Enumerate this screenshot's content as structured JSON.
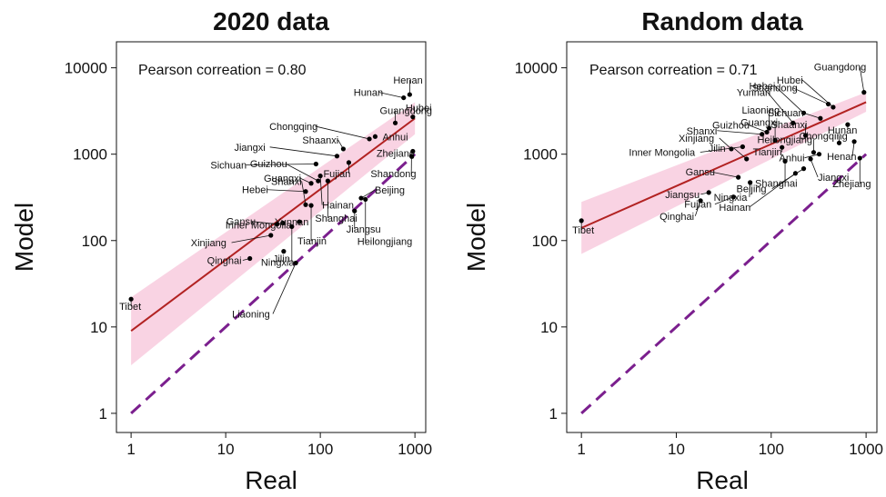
{
  "chart_data": [
    {
      "type": "scatter",
      "title": "2020 data",
      "xlabel": "Real",
      "ylabel": "Model",
      "xscale": "log",
      "yscale": "log",
      "xlim": [
        0.7,
        1300
      ],
      "ylim": [
        0.6,
        20000
      ],
      "xticks": [
        1,
        10,
        100,
        1000
      ],
      "xtick_labels": [
        "1",
        "10",
        "100",
        "1000"
      ],
      "yticks": [
        1,
        10,
        100,
        1000,
        10000
      ],
      "ytick_labels": [
        "1",
        "10",
        "100",
        "1000",
        "10000"
      ],
      "annotation": "Pearson correation = 0.80",
      "grid": false,
      "colors": {
        "points": "#000000",
        "fit": "#b22222",
        "band": "#f8c8dc",
        "identity": "#7b1f8e"
      },
      "fit_line": {
        "x": [
          1,
          1000
        ],
        "y": [
          9,
          2600
        ]
      },
      "confidence_band": {
        "x": [
          1,
          1000
        ],
        "lower": [
          3.6,
          1700
        ],
        "upper": [
          22,
          4000
        ]
      },
      "identity_line": {
        "x": [
          1,
          1000
        ],
        "y": [
          1,
          1000
        ]
      },
      "points": [
        {
          "label": "Tibet",
          "x": 1,
          "y": 21
        },
        {
          "label": "Qinghai",
          "x": 18,
          "y": 62
        },
        {
          "label": "Xinjiang",
          "x": 30,
          "y": 115
        },
        {
          "label": "Inner Mongolia",
          "x": 40,
          "y": 160
        },
        {
          "label": "Jilin",
          "x": 41,
          "y": 75
        },
        {
          "label": "Ningxia",
          "x": 50,
          "y": 145
        },
        {
          "label": "Liaoning",
          "x": 55,
          "y": 55
        },
        {
          "label": "Yunnan",
          "x": 60,
          "y": 165
        },
        {
          "label": "Gansu",
          "x": 35,
          "y": 155
        },
        {
          "label": "Shanxi",
          "x": 70,
          "y": 260
        },
        {
          "label": "Tianjin",
          "x": 80,
          "y": 255
        },
        {
          "label": "Hebei",
          "x": 70,
          "y": 370
        },
        {
          "label": "Guangxi",
          "x": 80,
          "y": 460
        },
        {
          "label": "Guizhou",
          "x": 95,
          "y": 490
        },
        {
          "label": "Sichuan",
          "x": 90,
          "y": 770
        },
        {
          "label": "Hainan",
          "x": 100,
          "y": 560
        },
        {
          "label": "Shanghai",
          "x": 120,
          "y": 490
        },
        {
          "label": "Jiangxi",
          "x": 150,
          "y": 950
        },
        {
          "label": "Shaanxi",
          "x": 175,
          "y": 1150
        },
        {
          "label": "Chongqing",
          "x": 330,
          "y": 1500
        },
        {
          "label": "Fujian",
          "x": 200,
          "y": 800
        },
        {
          "label": "Jiangsu",
          "x": 230,
          "y": 220
        },
        {
          "label": "Heilongjiang",
          "x": 300,
          "y": 300
        },
        {
          "label": "Beijing",
          "x": 270,
          "y": 310
        },
        {
          "label": "Anhui",
          "x": 380,
          "y": 1600
        },
        {
          "label": "Zhejiang",
          "x": 950,
          "y": 1080
        },
        {
          "label": "Shandong",
          "x": 920,
          "y": 950
        },
        {
          "label": "Guangdong",
          "x": 620,
          "y": 2300
        },
        {
          "label": "Hubei",
          "x": 950,
          "y": 2700
        },
        {
          "label": "Hunan",
          "x": 760,
          "y": 4500
        },
        {
          "label": "Henan",
          "x": 880,
          "y": 4900
        }
      ]
    },
    {
      "type": "scatter",
      "title": "Random data",
      "xlabel": "Real",
      "ylabel": "Model",
      "xscale": "log",
      "yscale": "log",
      "xlim": [
        0.7,
        1300
      ],
      "ylim": [
        0.6,
        20000
      ],
      "xticks": [
        1,
        10,
        100,
        1000
      ],
      "xtick_labels": [
        "1",
        "10",
        "100",
        "1000"
      ],
      "yticks": [
        1,
        10,
        100,
        1000,
        10000
      ],
      "ytick_labels": [
        "1",
        "10",
        "100",
        "1000",
        "10000"
      ],
      "annotation": "Pearson correation = 0.71",
      "grid": false,
      "colors": {
        "points": "#000000",
        "fit": "#b22222",
        "band": "#f8c8dc",
        "identity": "#7b1f8e"
      },
      "fit_line": {
        "x": [
          1,
          1000
        ],
        "y": [
          140,
          4000
        ]
      },
      "confidence_band": {
        "x": [
          1,
          1000
        ],
        "lower": [
          70,
          3100
        ],
        "upper": [
          280,
          5200
        ]
      },
      "identity_line": {
        "x": [
          1,
          1000
        ],
        "y": [
          1,
          1000
        ]
      },
      "points": [
        {
          "label": "Tibet",
          "x": 1,
          "y": 170
        },
        {
          "label": "Qinghai",
          "x": 18,
          "y": 290
        },
        {
          "label": "Jiangsu",
          "x": 22,
          "y": 360
        },
        {
          "label": "Fujian",
          "x": 40,
          "y": 320
        },
        {
          "label": "Gansu",
          "x": 45,
          "y": 540
        },
        {
          "label": "Ningxia",
          "x": 60,
          "y": 470
        },
        {
          "label": "Jilin",
          "x": 55,
          "y": 880
        },
        {
          "label": "Xinjiang",
          "x": 38,
          "y": 1150
        },
        {
          "label": "Inner Mongolia",
          "x": 50,
          "y": 1220
        },
        {
          "label": "Shanxi",
          "x": 80,
          "y": 1700
        },
        {
          "label": "Guizhou",
          "x": 90,
          "y": 1800
        },
        {
          "label": "Liaoning",
          "x": 95,
          "y": 2000
        },
        {
          "label": "Guangxi",
          "x": 110,
          "y": 1450
        },
        {
          "label": "Tianjin",
          "x": 130,
          "y": 1200
        },
        {
          "label": "Shanghai",
          "x": 140,
          "y": 830
        },
        {
          "label": "Hainan",
          "x": 180,
          "y": 600
        },
        {
          "label": "Beijing",
          "x": 220,
          "y": 680
        },
        {
          "label": "Shaanxi",
          "x": 230,
          "y": 1650
        },
        {
          "label": "Yunnan",
          "x": 170,
          "y": 2300
        },
        {
          "label": "Hebei",
          "x": 220,
          "y": 3000
        },
        {
          "label": "Heilongjiang",
          "x": 280,
          "y": 1050
        },
        {
          "label": "Anhui",
          "x": 320,
          "y": 1000
        },
        {
          "label": "Jiangxi",
          "x": 260,
          "y": 880
        },
        {
          "label": "Sichuan",
          "x": 330,
          "y": 2600
        },
        {
          "label": "Shandong",
          "x": 400,
          "y": 3800
        },
        {
          "label": "Hubei",
          "x": 450,
          "y": 3500
        },
        {
          "label": "Chongqing",
          "x": 520,
          "y": 1350
        },
        {
          "label": "Hunan",
          "x": 640,
          "y": 2200
        },
        {
          "label": "Henan",
          "x": 750,
          "y": 1400
        },
        {
          "label": "Zhejiang",
          "x": 860,
          "y": 900
        },
        {
          "label": "Guangdong",
          "x": 950,
          "y": 5200
        }
      ]
    }
  ]
}
